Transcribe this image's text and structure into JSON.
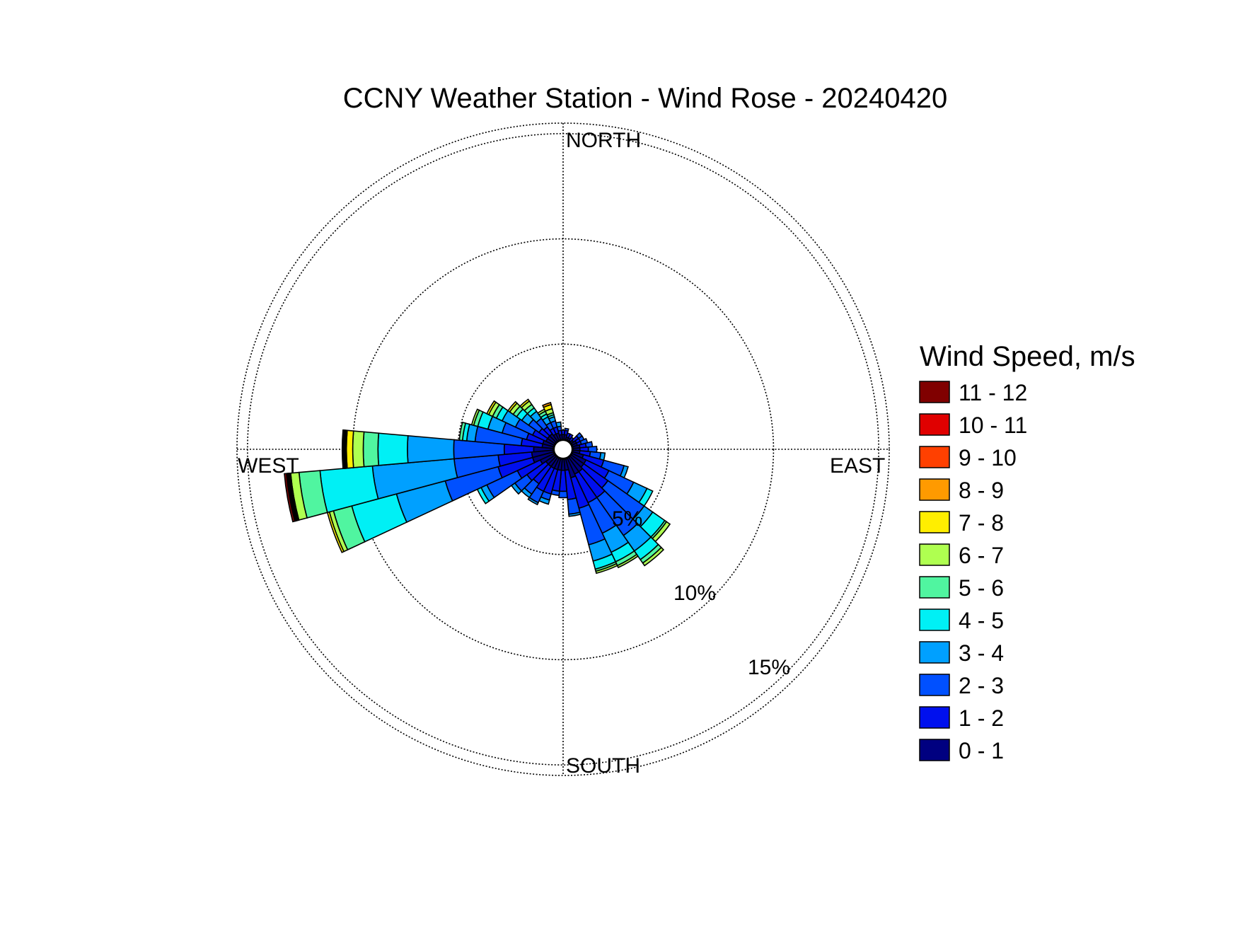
{
  "chart_data": {
    "type": "wind-rose",
    "title": "CCNY Weather Station - Wind Rose - 20240420",
    "directions": {
      "north": "NORTH",
      "south": "SOUTH",
      "east": "EAST",
      "west": "WEST"
    },
    "radial_ticks": [
      {
        "value": 5,
        "label": "5%"
      },
      {
        "value": 10,
        "label": "10%"
      },
      {
        "value": 15,
        "label": "15%"
      }
    ],
    "rmax": 15.5,
    "bin_width_deg": 10,
    "legend": {
      "title": "Wind Speed, m/s",
      "entries": [
        {
          "label": "11 - 12",
          "color": "#800000"
        },
        {
          "label": "10 - 11",
          "color": "#e00000"
        },
        {
          "label": "9 - 10",
          "color": "#ff4000"
        },
        {
          "label": "8 - 9",
          "color": "#ff9a00"
        },
        {
          "label": "7 - 8",
          "color": "#ffee00"
        },
        {
          "label": "6 - 7",
          "color": "#afff50"
        },
        {
          "label": "5 - 6",
          "color": "#50f5a0"
        },
        {
          "label": "4 - 5",
          "color": "#00f0f5"
        },
        {
          "label": "3 - 4",
          "color": "#00a0ff"
        },
        {
          "label": "2 - 3",
          "color": "#0050ff"
        },
        {
          "label": "1 - 2",
          "color": "#0010ee"
        },
        {
          "label": "0 - 1",
          "color": "#000080"
        }
      ]
    },
    "calm_circle_radius_pct": 0.45,
    "bins_note": "cumulative frequency (%) bounds per speed class, listed from 0-1 m/s upward",
    "bins": [
      {
        "dir": 0,
        "bounds": [
          0.7,
          0.9
        ]
      },
      {
        "dir": 10,
        "bounds": [
          0.7,
          0.9,
          1.0
        ]
      },
      {
        "dir": 20,
        "bounds": [
          0.6,
          0.8
        ]
      },
      {
        "dir": 30,
        "bounds": [
          0.6,
          0.8
        ]
      },
      {
        "dir": 40,
        "bounds": [
          0.5,
          0.7
        ]
      },
      {
        "dir": 50,
        "bounds": [
          0.6,
          0.9,
          1.1
        ]
      },
      {
        "dir": 60,
        "bounds": [
          0.7,
          0.9,
          1.1
        ]
      },
      {
        "dir": 70,
        "bounds": [
          0.7,
          0.9,
          1.2
        ]
      },
      {
        "dir": 80,
        "bounds": [
          0.8,
          1.1,
          1.4
        ]
      },
      {
        "dir": 90,
        "bounds": [
          0.8,
          1.2,
          1.6
        ]
      },
      {
        "dir": 100,
        "bounds": [
          0.8,
          1.3,
          1.8,
          2.0
        ]
      },
      {
        "dir": 110,
        "bounds": [
          1.0,
          2.0,
          3.0,
          3.2
        ]
      },
      {
        "dir": 120,
        "bounds": [
          1.2,
          2.4,
          3.7,
          4.4,
          4.7
        ]
      },
      {
        "dir": 130,
        "bounds": [
          1.2,
          2.6,
          4.7,
          5.2,
          5.9,
          6.0,
          6.2
        ]
      },
      {
        "dir": 140,
        "bounds": [
          1.3,
          2.8,
          5.0,
          5.9,
          6.4,
          6.6,
          6.75
        ]
      },
      {
        "dir": 150,
        "bounds": [
          1.3,
          2.8,
          4.4,
          5.4,
          5.9,
          6.1,
          6.2
        ]
      },
      {
        "dir": 160,
        "bounds": [
          1.4,
          2.9,
          4.7,
          5.5,
          5.9,
          6.0,
          6.1
        ]
      },
      {
        "dir": 170,
        "bounds": [
          1.0,
          2.4,
          3.1,
          3.2
        ]
      },
      {
        "dir": 180,
        "bounds": [
          1.0,
          2.0,
          2.3
        ]
      },
      {
        "dir": 190,
        "bounds": [
          1.0,
          2.0,
          2.2
        ]
      },
      {
        "dir": 200,
        "bounds": [
          1.0,
          2.2,
          2.5,
          2.7
        ]
      },
      {
        "dir": 210,
        "bounds": [
          1.0,
          2.2,
          2.8,
          2.9
        ]
      },
      {
        "dir": 220,
        "bounds": [
          1.0,
          2.0,
          2.6,
          2.8
        ]
      },
      {
        "dir": 230,
        "bounds": [
          1.0,
          2.1,
          2.8,
          3.0
        ]
      },
      {
        "dir": 240,
        "bounds": [
          1.2,
          2.4,
          4.0,
          4.3,
          4.5
        ]
      },
      {
        "dir": 250,
        "bounds": [
          1.5,
          3.2,
          5.8,
          8.2,
          10.4,
          11.3,
          11.5,
          11.6
        ]
      },
      {
        "dir": 260,
        "bounds": [
          1.5,
          3.1,
          5.2,
          9.1,
          11.6,
          12.6,
          13.0,
          13.05,
          13.1,
          13.15,
          13.2,
          13.3
        ]
      },
      {
        "dir": 270,
        "bounds": [
          1.4,
          2.8,
          5.2,
          7.4,
          8.8,
          9.5,
          10.0,
          10.3,
          10.35,
          10.4,
          10.45,
          10.5
        ]
      },
      {
        "dir": 280,
        "bounds": [
          1.0,
          2.0,
          4.2,
          4.6,
          4.8,
          4.95
        ]
      },
      {
        "dir": 290,
        "bounds": [
          1.0,
          1.8,
          3.0,
          3.7,
          4.2,
          4.4,
          4.5
        ]
      },
      {
        "dir": 300,
        "bounds": [
          0.9,
          1.6,
          2.5,
          3.2,
          3.5,
          3.7,
          3.9,
          4.0
        ]
      },
      {
        "dir": 310,
        "bounds": [
          0.9,
          1.4,
          2.0,
          2.4,
          2.7,
          2.9,
          3.1,
          3.2
        ]
      },
      {
        "dir": 320,
        "bounds": [
          0.9,
          1.3,
          1.8,
          2.2,
          2.4,
          2.6,
          2.8,
          2.9
        ]
      },
      {
        "dir": 330,
        "bounds": [
          0.8,
          1.1,
          1.4,
          1.7,
          1.85,
          2.0,
          2.1
        ]
      },
      {
        "dir": 340,
        "bounds": [
          0.8,
          1.1,
          1.4,
          1.6,
          1.7,
          1.8,
          2.0,
          2.2,
          2.3
        ]
      },
      {
        "dir": 350,
        "bounds": [
          0.7,
          0.9,
          1.1,
          1.3
        ]
      }
    ]
  }
}
